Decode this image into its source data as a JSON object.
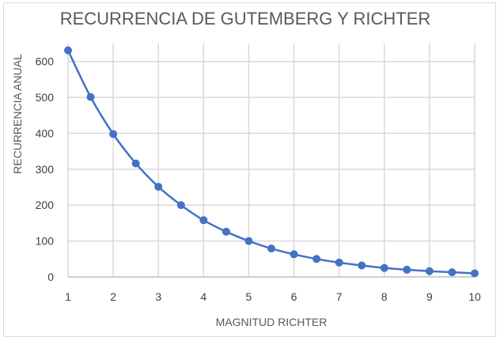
{
  "chart_data": {
    "type": "line",
    "title": "RECURRENCIA DE GUTEMBERG Y  RICHTER",
    "xlabel": "MAGNITUD RICHTER",
    "ylabel": "RECURRENCIA ANUAL",
    "x": [
      1,
      1.5,
      2,
      2.5,
      3,
      3.5,
      4,
      4.5,
      5,
      5.5,
      6,
      6.5,
      7,
      7.5,
      8,
      8.5,
      9,
      9.5,
      10
    ],
    "series": [
      {
        "values": [
          631,
          501,
          398,
          316,
          251,
          200,
          158,
          126,
          100,
          79,
          63,
          50,
          40,
          32,
          25,
          20,
          16,
          13,
          10
        ]
      }
    ],
    "xlim": [
      1,
      10
    ],
    "ylim": [
      0,
      650
    ],
    "x_ticks": [
      "1",
      "2",
      "3",
      "4",
      "5",
      "6",
      "7",
      "8",
      "9",
      "10"
    ],
    "y_ticks": [
      "0",
      "100",
      "200",
      "300",
      "400",
      "500",
      "600"
    ],
    "grid": true,
    "smooth": true,
    "markers": true,
    "legend": "none",
    "colors": {
      "series": "#4472c4",
      "grid": "#d9d9d9",
      "text": "#595959"
    }
  }
}
